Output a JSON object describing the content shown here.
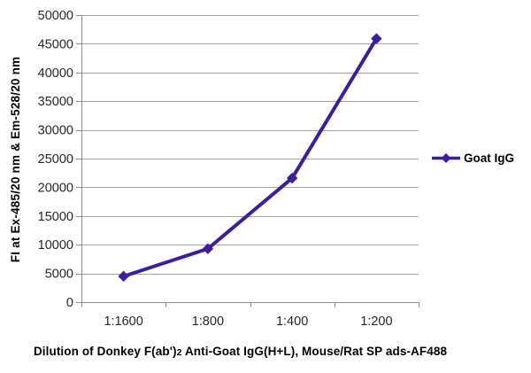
{
  "chart_data": {
    "type": "line",
    "categories": [
      "1:1600",
      "1:800",
      "1:400",
      "1:200"
    ],
    "series": [
      {
        "name": "Goat IgG",
        "values": [
          4500,
          9300,
          21600,
          45900
        ]
      }
    ],
    "title": "",
    "xlabel": "Dilution of Donkey F(ab')2 Anti-Goat IgG(H+L), Mouse/Rat SP ads-AF488",
    "xlabel_parts": {
      "prefix": "Dilution of Donkey F(ab')",
      "subscript": "2",
      "suffix": " Anti-Goat IgG(H+L), Mouse/Rat SP ads-AF488"
    },
    "ylabel": "FI at Ex-485/20 nm & Em-528/20 nm",
    "ylim": [
      0,
      50000
    ],
    "yticks": [
      0,
      5000,
      10000,
      15000,
      20000,
      25000,
      30000,
      35000,
      40000,
      45000,
      50000
    ],
    "grid": true,
    "legend_position": "right",
    "marker": "diamond"
  },
  "colors": {
    "series": "#3c1d9e",
    "gridline": "#a6a6a6",
    "axis": "#8c8c8c",
    "tick_text": "#262626",
    "title_text": "#000000",
    "background": "#ffffff"
  }
}
